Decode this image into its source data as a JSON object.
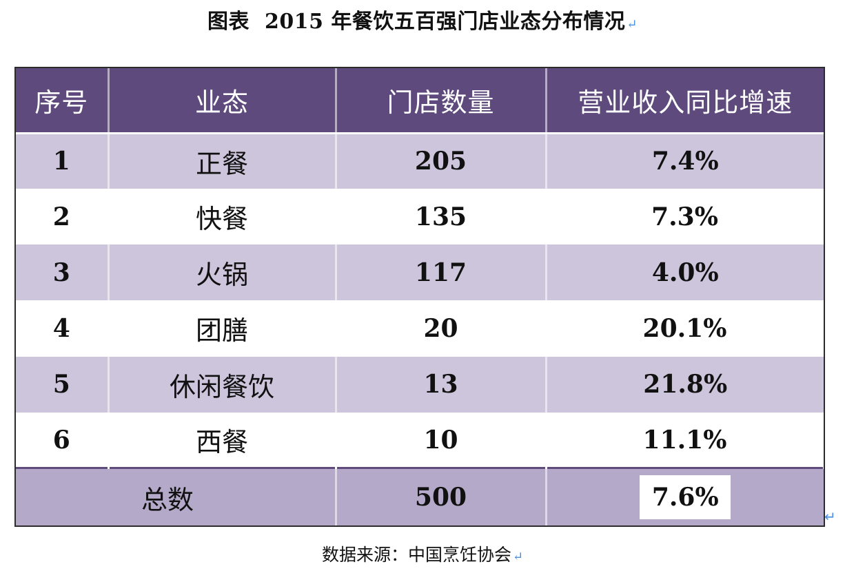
{
  "title": {
    "label": "图表",
    "text": "2015 年餐饮五百强门店业态分布情况",
    "return_mark": "↵"
  },
  "table": {
    "headers": [
      "序号",
      "业态",
      "门店数量",
      "营业收入同比增速"
    ],
    "rows": [
      {
        "no": "1",
        "type": "正餐",
        "stores": "205",
        "growth": "7.4%"
      },
      {
        "no": "2",
        "type": "快餐",
        "stores": "135",
        "growth": "7.3%"
      },
      {
        "no": "3",
        "type": "火锅",
        "stores": "117",
        "growth": "4.0%"
      },
      {
        "no": "4",
        "type": "团膳",
        "stores": "20",
        "growth": "20.1%"
      },
      {
        "no": "5",
        "type": "休闲餐饮",
        "stores": "13",
        "growth": "21.8%"
      },
      {
        "no": "6",
        "type": "西餐",
        "stores": "10",
        "growth": "11.1%"
      }
    ],
    "total": {
      "label": "总数",
      "stores": "500",
      "growth": "7.6%"
    }
  },
  "corner_mark": "↵",
  "source": {
    "text": "数据来源：中国烹饪协会",
    "return_mark": "↵"
  },
  "colors": {
    "header_bg": "#5e4a7c",
    "odd_row_bg": "#cdc5dc",
    "total_row_bg": "#b5a9c9",
    "return_mark": "#4a90e2"
  }
}
